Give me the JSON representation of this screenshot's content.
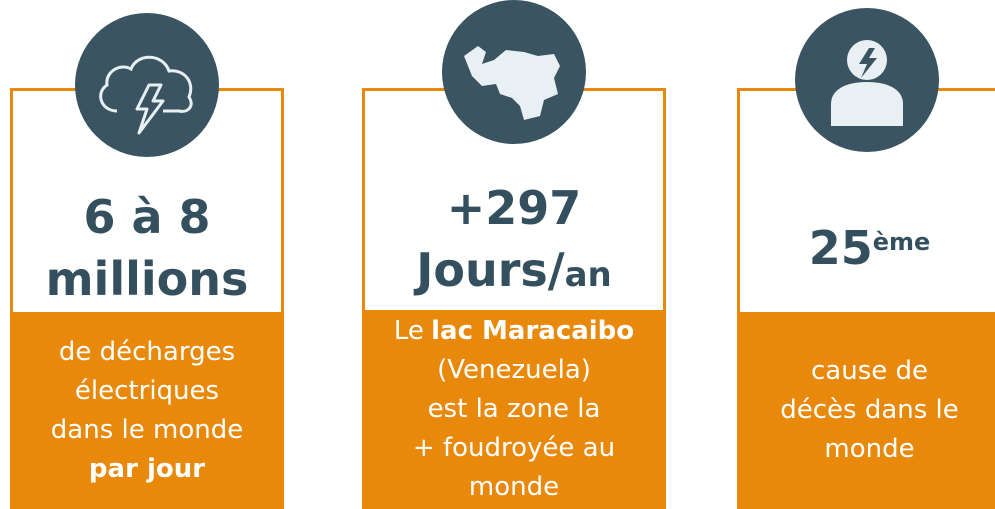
{
  "cards": [
    {
      "headline": [
        [
          {
            "text": "6 à 8"
          }
        ],
        [
          {
            "text": "millions"
          }
        ]
      ],
      "description": [
        [
          {
            "text": "de décharges"
          }
        ],
        [
          {
            "text": "électriques"
          }
        ],
        [
          {
            "text": "dans le monde"
          }
        ],
        [
          {
            "text": "par jour",
            "bold": true
          }
        ]
      ]
    },
    {
      "headline": [
        [
          {
            "text": "+297"
          }
        ],
        [
          {
            "text": "Jours/"
          },
          {
            "text": "an",
            "size": "small"
          }
        ]
      ],
      "description": [
        [
          {
            "text": "Le"
          },
          {
            "text": "lac Maracaibo",
            "bold": true
          }
        ],
        [
          {
            "text": "(Venezuela)"
          }
        ],
        [
          {
            "text": "est la zone la"
          }
        ],
        [
          {
            "text": "+ foudroyée au"
          }
        ],
        [
          {
            "text": "monde"
          }
        ]
      ]
    },
    {
      "headline": [
        [
          {
            "text": "25"
          },
          {
            "text": "ème",
            "size": "sup"
          }
        ]
      ],
      "description": [
        [
          {
            "text": "cause de"
          }
        ],
        [
          {
            "text": "décès dans le"
          }
        ],
        [
          {
            "text": "monde"
          }
        ]
      ]
    }
  ]
}
